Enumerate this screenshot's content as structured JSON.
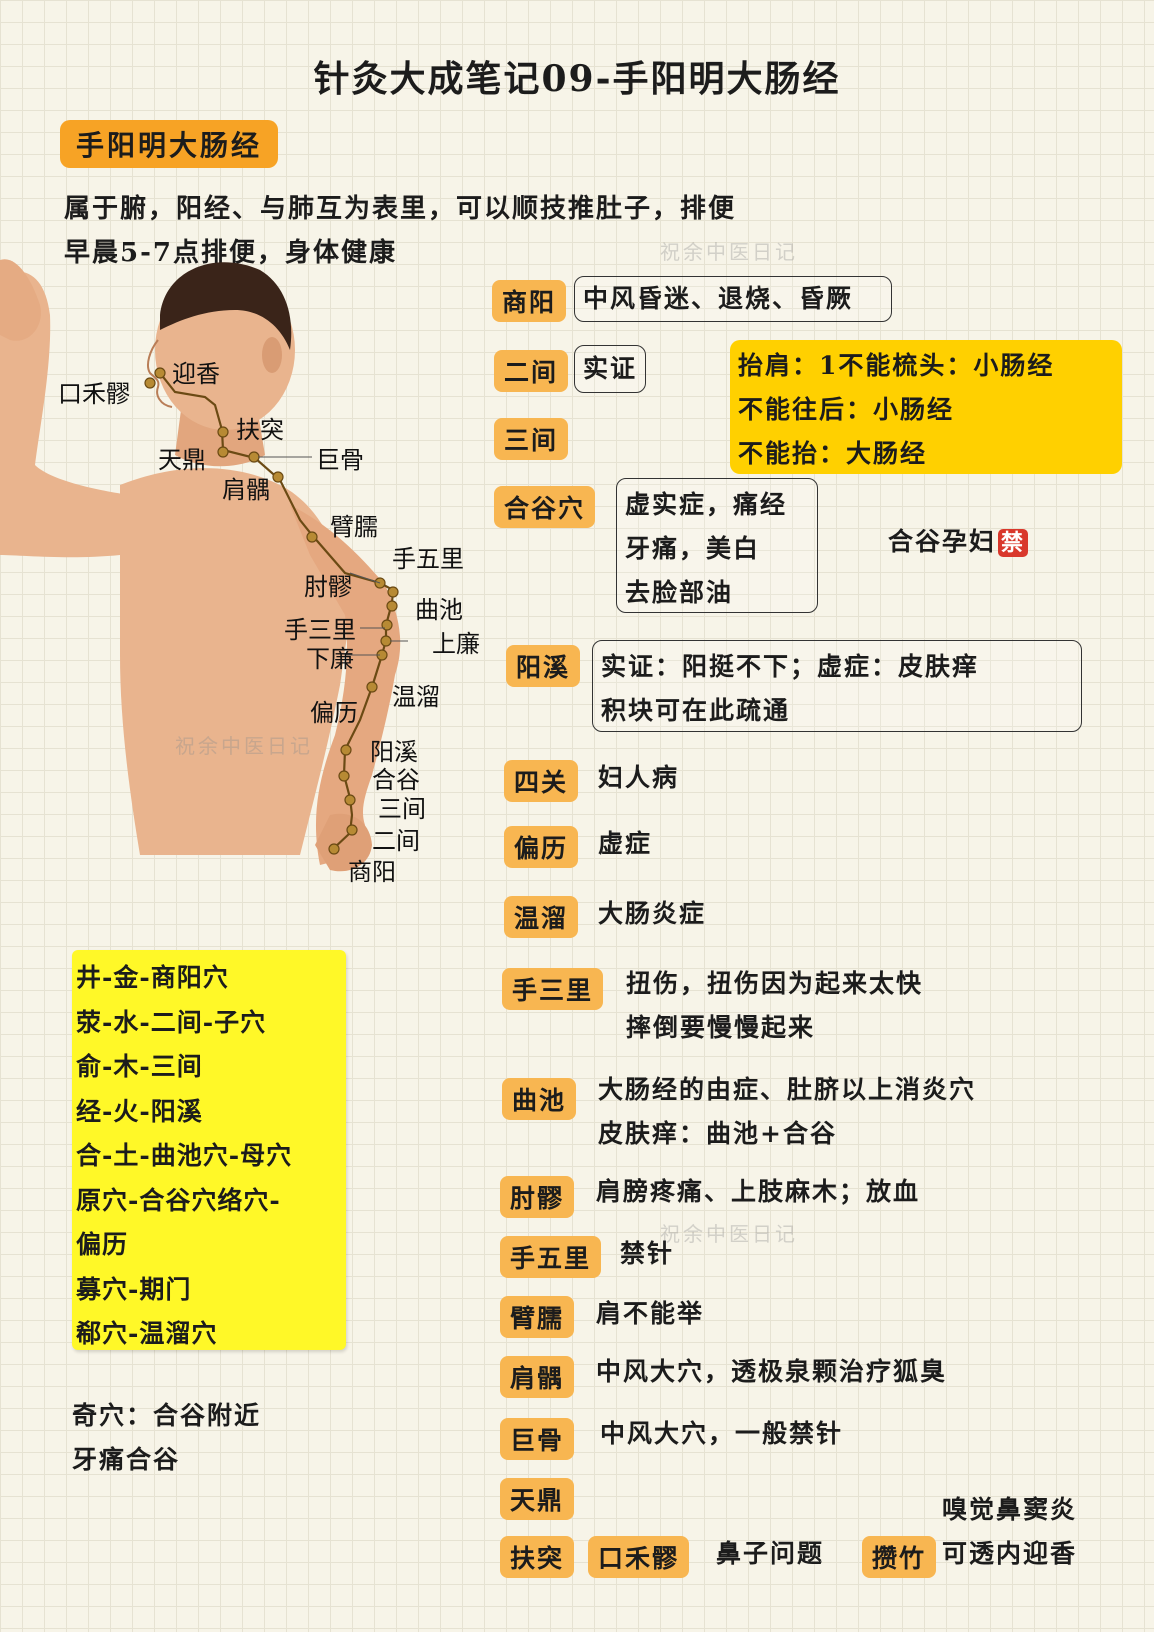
{
  "title": "针灸大成笔记09-手阳明大肠经",
  "main_tag": "手阳明大肠经",
  "intro": [
    "属于腑，阳经、与肺互为表里，可以顺技推肚子，排便",
    "早晨5-7点排便，身体健康"
  ],
  "figure_labels": {
    "yingxiang": "迎香",
    "kouheliao": "口禾髎",
    "futu": "扶突",
    "tianding": "天鼎",
    "jugu": "巨骨",
    "jianyu": "肩髃",
    "binao": "臂臑",
    "shouwuli": "手五里",
    "zhouliao": "肘髎",
    "quchi": "曲池",
    "shousanli": "手三里",
    "shanglian": "上廉",
    "xialian": "下廉",
    "wenliu": "温溜",
    "pianli": "偏历",
    "yangxi": "阳溪",
    "hegu": "合谷",
    "sanjian": "三间",
    "erjian": "二间",
    "shangyang": "商阳"
  },
  "points": {
    "shangyang": {
      "label": "商阳",
      "text": "中风昏迷、退烧、昏厥"
    },
    "erjian": {
      "label": "二间",
      "text": "实证"
    },
    "sanjian": {
      "label": "三间"
    },
    "shoulder": [
      "抬肩：1不能梳头：小肠经",
      "不能往后：小肠经",
      "不能抬：大肠经"
    ],
    "hegu": {
      "label": "合谷穴",
      "lines": [
        "虚实症，痛经",
        "牙痛，美白",
        "去脸部油"
      ],
      "note": "合谷孕妇",
      "ban": "禁"
    },
    "yangxi": {
      "label": "阳溪",
      "lines": [
        "实证：阳挺不下；虚症：皮肤痒",
        "积块可在此疏通"
      ]
    },
    "siguan": {
      "label": "四关",
      "text": "妇人病"
    },
    "pianli": {
      "label": "偏历",
      "text": "虚症"
    },
    "wenliu": {
      "label": "温溜",
      "text": "大肠炎症"
    },
    "shousanli": {
      "label": "手三里",
      "lines": [
        "扭伤，扭伤因为起来太快",
        "摔倒要慢慢起来"
      ]
    },
    "quchi": {
      "label": "曲池",
      "lines": [
        "大肠经的由症、肚脐以上消炎穴",
        "皮肤痒：曲池+合谷"
      ]
    },
    "zhouliao": {
      "label": "肘髎",
      "text": "肩膀疼痛、上肢麻木；放血"
    },
    "shouwuli": {
      "label": "手五里",
      "text": "禁针"
    },
    "binao": {
      "label": "臂臑",
      "text": "肩不能举"
    },
    "jianyu": {
      "label": "肩髃",
      "text": "中风大穴，透极泉颗治疗狐臭"
    },
    "jugu": {
      "label": "巨骨",
      "text": "中风大穴，一般禁针"
    },
    "tianding": {
      "label": "天鼎"
    },
    "futu": {
      "label": "扶突"
    },
    "kouheliao": {
      "label": "口禾髎",
      "text": "鼻子问题"
    },
    "cuanzhu": {
      "label": "攒竹",
      "lines": [
        "嗅觉鼻窦炎",
        "可透内迎香"
      ]
    }
  },
  "wushu": [
    "井-金-商阳穴",
    "荥-水-二间-子穴",
    "俞-木-三间",
    "经-火-阳溪",
    "合-土-曲池穴-母穴",
    "原穴-合谷穴络穴-",
    "偏历",
    "募穴-期门",
    "郗穴-温溜穴"
  ],
  "qixue": [
    "奇穴：合谷附近",
    "牙痛合谷"
  ],
  "watermark": "祝余中医日记",
  "colors": {
    "orange_tag": "#f7a325",
    "point_tag": "#f8b651",
    "gold_box": "#ffd000",
    "yellow_box": "#fff828",
    "ban_red": "#d9382c",
    "skin": "#e9b48e"
  }
}
